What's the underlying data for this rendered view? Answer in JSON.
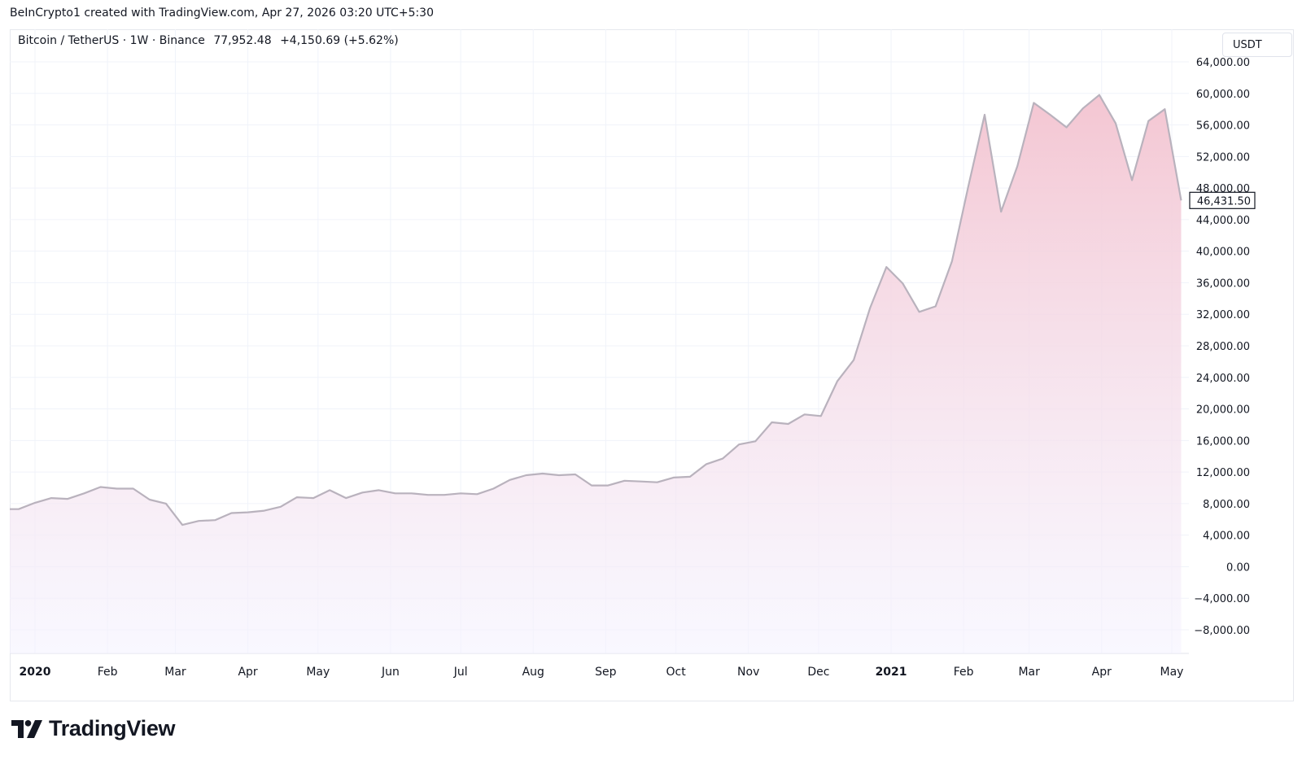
{
  "header": {
    "attribution": "BeInCrypto1 created with TradingView.com, Apr 27, 2026 03:20 UTC+5:30"
  },
  "symbol": {
    "name": "Bitcoin / TetherUS",
    "sep1": "·",
    "interval": "1W",
    "sep2": "·",
    "exchange": "Binance",
    "last": "77,952.48",
    "change": "+4,150.69",
    "change_pct": "(+5.62%)"
  },
  "currency_label": "USDT",
  "brand": {
    "text": "TradingView",
    "icon": "tradingview-logo-icon"
  },
  "colors": {
    "line": "#b9b2bd",
    "fill_top": "#f4c6d2",
    "fill_bottom": "#f5f3ff",
    "grid": "#f0f3fa",
    "text": "#131722"
  },
  "chart_data": {
    "type": "area",
    "ylim": [
      -10000,
      66000
    ],
    "y_ticks": [
      64000,
      60000,
      56000,
      52000,
      48000,
      44000,
      40000,
      36000,
      32000,
      28000,
      24000,
      20000,
      16000,
      12000,
      8000,
      4000,
      0,
      -4000,
      -8000
    ],
    "y_tick_labels": [
      "64,000.00",
      "60,000.00",
      "56,000.00",
      "52,000.00",
      "48,000.00",
      "44,000.00",
      "40,000.00",
      "36,000.00",
      "32,000.00",
      "28,000.00",
      "24,000.00",
      "20,000.00",
      "16,000.00",
      "12,000.00",
      "8,000.00",
      "4,000.00",
      "0.00",
      "−4,000.00",
      "−8,000.00"
    ],
    "x_ticks": [
      {
        "label": "2020",
        "date": "2020-01-01",
        "bold": true
      },
      {
        "label": "Feb",
        "date": "2020-02-01"
      },
      {
        "label": "Mar",
        "date": "2020-03-01"
      },
      {
        "label": "Apr",
        "date": "2020-04-01"
      },
      {
        "label": "May",
        "date": "2020-05-01"
      },
      {
        "label": "Jun",
        "date": "2020-06-01"
      },
      {
        "label": "Jul",
        "date": "2020-07-01"
      },
      {
        "label": "Aug",
        "date": "2020-08-01"
      },
      {
        "label": "Sep",
        "date": "2020-09-01"
      },
      {
        "label": "Oct",
        "date": "2020-10-01"
      },
      {
        "label": "Nov",
        "date": "2020-11-01"
      },
      {
        "label": "Dec",
        "date": "2020-12-01"
      },
      {
        "label": "2021",
        "date": "2021-01-01",
        "bold": true
      },
      {
        "label": "Feb",
        "date": "2021-02-01"
      },
      {
        "label": "Mar",
        "date": "2021-03-01"
      },
      {
        "label": "Apr",
        "date": "2021-04-01"
      },
      {
        "label": "May",
        "date": "2021-05-01"
      }
    ],
    "x_range": [
      "2019-12-20",
      "2021-05-14"
    ],
    "current_value_label": "46,431.50",
    "current_value": 46431.5,
    "series": [
      {
        "points": [
          [
            "2019-12-20",
            7300
          ],
          [
            "2019-12-25",
            7300
          ],
          [
            "2020-01-01",
            8100
          ],
          [
            "2020-01-08",
            8700
          ],
          [
            "2020-01-15",
            8600
          ],
          [
            "2020-01-22",
            9300
          ],
          [
            "2020-01-29",
            10100
          ],
          [
            "2020-02-05",
            9900
          ],
          [
            "2020-02-12",
            9900
          ],
          [
            "2020-02-19",
            8500
          ],
          [
            "2020-02-26",
            8000
          ],
          [
            "2020-03-04",
            5300
          ],
          [
            "2020-03-11",
            5800
          ],
          [
            "2020-03-18",
            5900
          ],
          [
            "2020-03-25",
            6800
          ],
          [
            "2020-04-01",
            6900
          ],
          [
            "2020-04-08",
            7100
          ],
          [
            "2020-04-15",
            7600
          ],
          [
            "2020-04-22",
            8800
          ],
          [
            "2020-04-29",
            8700
          ],
          [
            "2020-05-06",
            9700
          ],
          [
            "2020-05-13",
            8700
          ],
          [
            "2020-05-20",
            9400
          ],
          [
            "2020-05-27",
            9700
          ],
          [
            "2020-06-03",
            9300
          ],
          [
            "2020-06-10",
            9300
          ],
          [
            "2020-06-17",
            9100
          ],
          [
            "2020-06-24",
            9100
          ],
          [
            "2020-07-01",
            9300
          ],
          [
            "2020-07-08",
            9200
          ],
          [
            "2020-07-15",
            9900
          ],
          [
            "2020-07-22",
            11000
          ],
          [
            "2020-07-29",
            11600
          ],
          [
            "2020-08-05",
            11800
          ],
          [
            "2020-08-12",
            11600
          ],
          [
            "2020-08-19",
            11700
          ],
          [
            "2020-08-26",
            10300
          ],
          [
            "2020-09-02",
            10300
          ],
          [
            "2020-09-09",
            10900
          ],
          [
            "2020-09-16",
            10800
          ],
          [
            "2020-09-23",
            10700
          ],
          [
            "2020-09-30",
            11300
          ],
          [
            "2020-10-07",
            11400
          ],
          [
            "2020-10-14",
            13000
          ],
          [
            "2020-10-21",
            13700
          ],
          [
            "2020-10-28",
            15500
          ],
          [
            "2020-11-04",
            15900
          ],
          [
            "2020-11-11",
            18300
          ],
          [
            "2020-11-18",
            18100
          ],
          [
            "2020-11-25",
            19300
          ],
          [
            "2020-12-02",
            19100
          ],
          [
            "2020-12-09",
            23500
          ],
          [
            "2020-12-16",
            26200
          ],
          [
            "2020-12-23",
            32800
          ],
          [
            "2020-12-30",
            38000
          ],
          [
            "2021-01-06",
            35900
          ],
          [
            "2021-01-13",
            32300
          ],
          [
            "2021-01-20",
            33000
          ],
          [
            "2021-01-27",
            38700
          ],
          [
            "2021-02-03",
            48200
          ],
          [
            "2021-02-10",
            57300
          ],
          [
            "2021-02-17",
            45000
          ],
          [
            "2021-02-24",
            50800
          ],
          [
            "2021-03-03",
            58800
          ],
          [
            "2021-03-10",
            57300
          ],
          [
            "2021-03-17",
            55700
          ],
          [
            "2021-03-24",
            58100
          ],
          [
            "2021-03-31",
            59800
          ],
          [
            "2021-04-07",
            56200
          ],
          [
            "2021-04-14",
            49000
          ],
          [
            "2021-04-21",
            56500
          ],
          [
            "2021-04-28",
            58000
          ],
          [
            "2021-05-05",
            46431.5
          ]
        ]
      }
    ]
  }
}
